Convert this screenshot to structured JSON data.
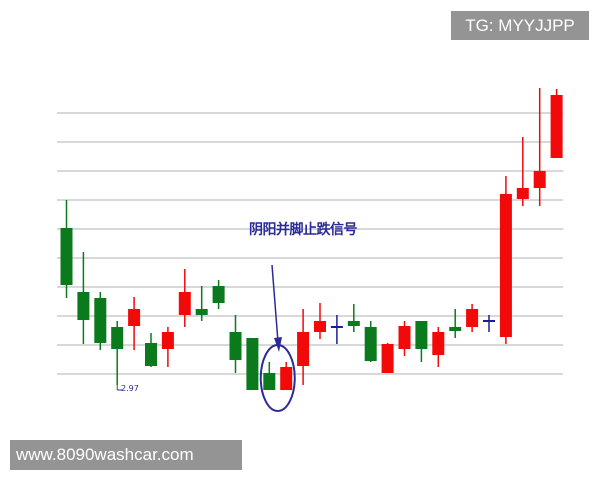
{
  "watermarks": {
    "top": "TG: MYYJJPP",
    "bottom": "www.8090washcar.com"
  },
  "chart_data": {
    "type": "candlestick",
    "title": "",
    "xlabel": "",
    "ylabel": "",
    "grid": "horizontal",
    "colors": {
      "up": "#f20a0a",
      "down": "#0b7a1c",
      "doji": "#1c1c9a",
      "annotation": "#2a2a9a",
      "grid": "#cccccc"
    },
    "annotation": {
      "text": "阴阳并脚止跌信号",
      "target_candles": [
        13,
        14
      ]
    },
    "low_label": "2.97",
    "candles": [
      {
        "o": 4.54,
        "h": 4.82,
        "l": 3.84,
        "c": 3.97
      },
      {
        "o": 3.9,
        "h": 4.3,
        "l": 3.38,
        "c": 3.62
      },
      {
        "o": 3.84,
        "h": 3.9,
        "l": 3.32,
        "c": 3.39
      },
      {
        "o": 3.55,
        "h": 3.61,
        "l": 2.97,
        "c": 3.33
      },
      {
        "o": 3.56,
        "h": 3.85,
        "l": 3.32,
        "c": 3.73
      },
      {
        "o": 3.39,
        "h": 3.49,
        "l": 3.15,
        "c": 3.16
      },
      {
        "o": 3.33,
        "h": 3.55,
        "l": 3.15,
        "c": 3.5
      },
      {
        "o": 3.67,
        "h": 4.13,
        "l": 3.55,
        "c": 3.9
      },
      {
        "o": 3.73,
        "h": 3.96,
        "l": 3.61,
        "c": 3.67
      },
      {
        "o": 3.96,
        "h": 4.02,
        "l": 3.73,
        "c": 3.79
      },
      {
        "o": 3.5,
        "h": 3.67,
        "l": 3.09,
        "c": 3.22
      },
      {
        "o": 3.44,
        "h": 3.44,
        "l": 2.92,
        "c": 2.92
      },
      {
        "o": 3.09,
        "h": 3.2,
        "l": 2.92,
        "c": 2.92
      },
      {
        "o": 2.92,
        "h": 3.2,
        "l": 2.92,
        "c": 3.15
      },
      {
        "o": 3.16,
        "h": 3.73,
        "l": 2.97,
        "c": 3.5
      },
      {
        "o": 3.5,
        "h": 3.79,
        "l": 3.43,
        "c": 3.61
      },
      {
        "o": 3.55,
        "h": 3.67,
        "l": 3.38,
        "c": 3.55
      },
      {
        "o": 3.61,
        "h": 3.78,
        "l": 3.5,
        "c": 3.56
      },
      {
        "o": 3.55,
        "h": 3.61,
        "l": 3.2,
        "c": 3.21
      },
      {
        "o": 3.09,
        "h": 3.39,
        "l": 3.09,
        "c": 3.38
      },
      {
        "o": 3.33,
        "h": 3.61,
        "l": 3.26,
        "c": 3.56
      },
      {
        "o": 3.61,
        "h": 3.61,
        "l": 3.2,
        "c": 3.33
      },
      {
        "o": 3.27,
        "h": 3.55,
        "l": 3.15,
        "c": 3.5
      },
      {
        "o": 3.55,
        "h": 3.73,
        "l": 3.44,
        "c": 3.51
      },
      {
        "o": 3.55,
        "h": 3.78,
        "l": 3.5,
        "c": 3.73
      },
      {
        "o": 3.61,
        "h": 3.67,
        "l": 3.5,
        "c": 3.61
      },
      {
        "o": 3.45,
        "h": 5.06,
        "l": 3.38,
        "c": 4.88
      },
      {
        "o": 4.83,
        "h": 5.45,
        "l": 4.76,
        "c": 4.94
      },
      {
        "o": 4.94,
        "h": 5.94,
        "l": 4.76,
        "c": 5.11
      },
      {
        "o": 5.24,
        "h": 5.93,
        "l": 5.24,
        "c": 5.87
      }
    ]
  }
}
